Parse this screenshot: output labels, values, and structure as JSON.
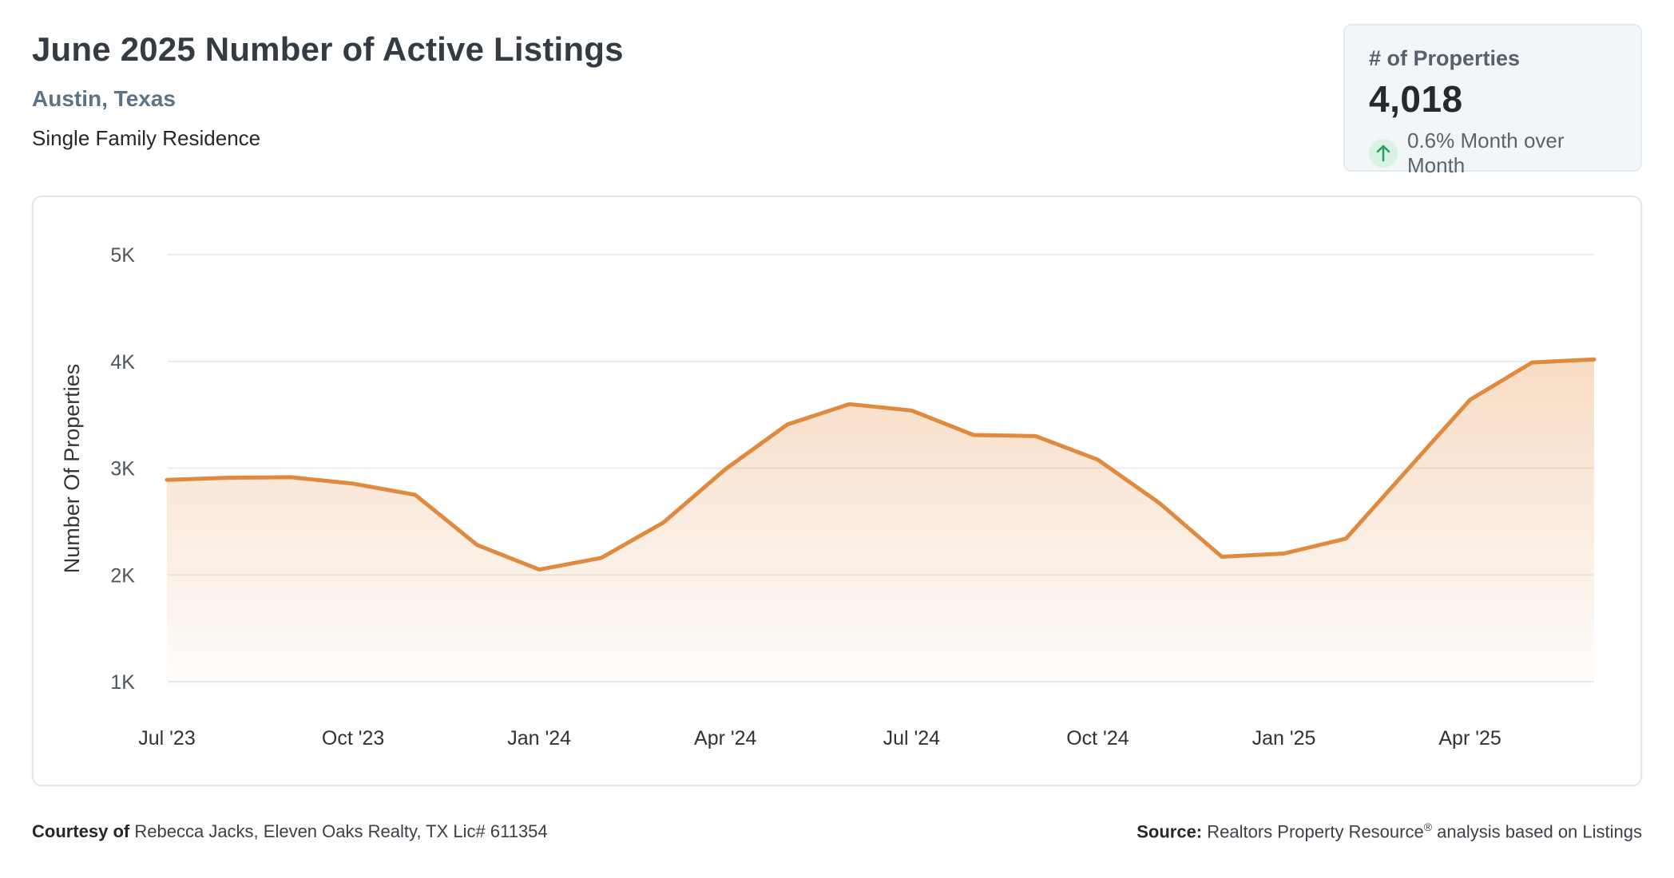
{
  "header": {
    "title": "June 2025 Number of Active Listings",
    "location": "Austin, Texas",
    "property_type": "Single Family Residence"
  },
  "stats_card": {
    "label": "# of Properties",
    "value": "4,018",
    "trend": {
      "icon": "arrow-up-icon",
      "direction": "up",
      "text": "0.6% Month over Month",
      "arrow_color": "#2aa05f",
      "circle_color": "#d9f2e3"
    }
  },
  "chart_data": {
    "type": "area",
    "title": "",
    "xlabel": "",
    "ylabel": "Number Of Properties",
    "ylim": [
      1000,
      5000
    ],
    "grid": "horizontal",
    "legend": "none",
    "line_color": "#df8a3e",
    "fill_color": "#e69046",
    "x": [
      "Jul '23",
      "Aug '23",
      "Sep '23",
      "Oct '23",
      "Nov '23",
      "Dec '23",
      "Jan '24",
      "Feb '24",
      "Mar '24",
      "Apr '24",
      "May '24",
      "Jun '24",
      "Jul '24",
      "Aug '24",
      "Sep '24",
      "Oct '24",
      "Nov '24",
      "Dec '24",
      "Jan '25",
      "Feb '25",
      "Mar '25",
      "Apr '25",
      "May '25",
      "Jun '25"
    ],
    "values": [
      2890,
      2910,
      2915,
      2855,
      2750,
      2280,
      2050,
      2160,
      2490,
      2990,
      3410,
      3600,
      3540,
      3310,
      3300,
      3080,
      2670,
      2170,
      2200,
      2340,
      2990,
      3640,
      3990,
      4018
    ],
    "y_ticks": [
      {
        "value": 1000,
        "label": "1K"
      },
      {
        "value": 2000,
        "label": "2K"
      },
      {
        "value": 3000,
        "label": "3K"
      },
      {
        "value": 4000,
        "label": "4K"
      },
      {
        "value": 5000,
        "label": "5K"
      }
    ],
    "x_axis_ticks": [
      "Jul '23",
      "Oct '23",
      "Jan '24",
      "Apr '24",
      "Jul '24",
      "Oct '24",
      "Jan '25",
      "Apr '25"
    ]
  },
  "footer": {
    "courtesy_label": "Courtesy of",
    "courtesy_text": "Rebecca Jacks, Eleven Oaks Realty, TX Lic# 611354",
    "source_label": "Source:",
    "source_name": "Realtors Property Resource",
    "source_reg": "®",
    "source_rest": "analysis based on Listings"
  }
}
